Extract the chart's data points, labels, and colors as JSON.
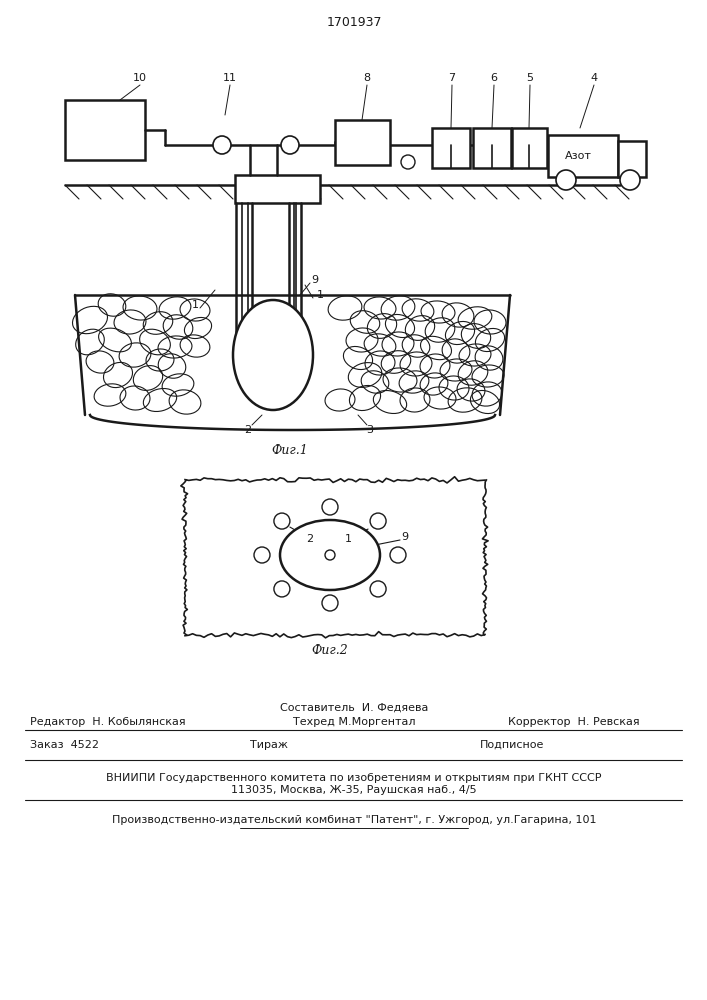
{
  "patent_number": "1701937",
  "bg_color": "#ffffff",
  "line_color": "#1a1a1a",
  "fig1_caption": "Фиг.1",
  "fig2_caption": "Фиг.2",
  "footer_line3": "ВНИИПИ Государственного комитета по изобретениям и открытиям при ГКНТ СССР",
  "footer_line4": "113035, Москва, Ж-35, Раушская наб., 4/5",
  "footer_line5": "Производственно-издательский комбинат \"Патент\", г. Ужгород, ул.Гагарина, 101"
}
